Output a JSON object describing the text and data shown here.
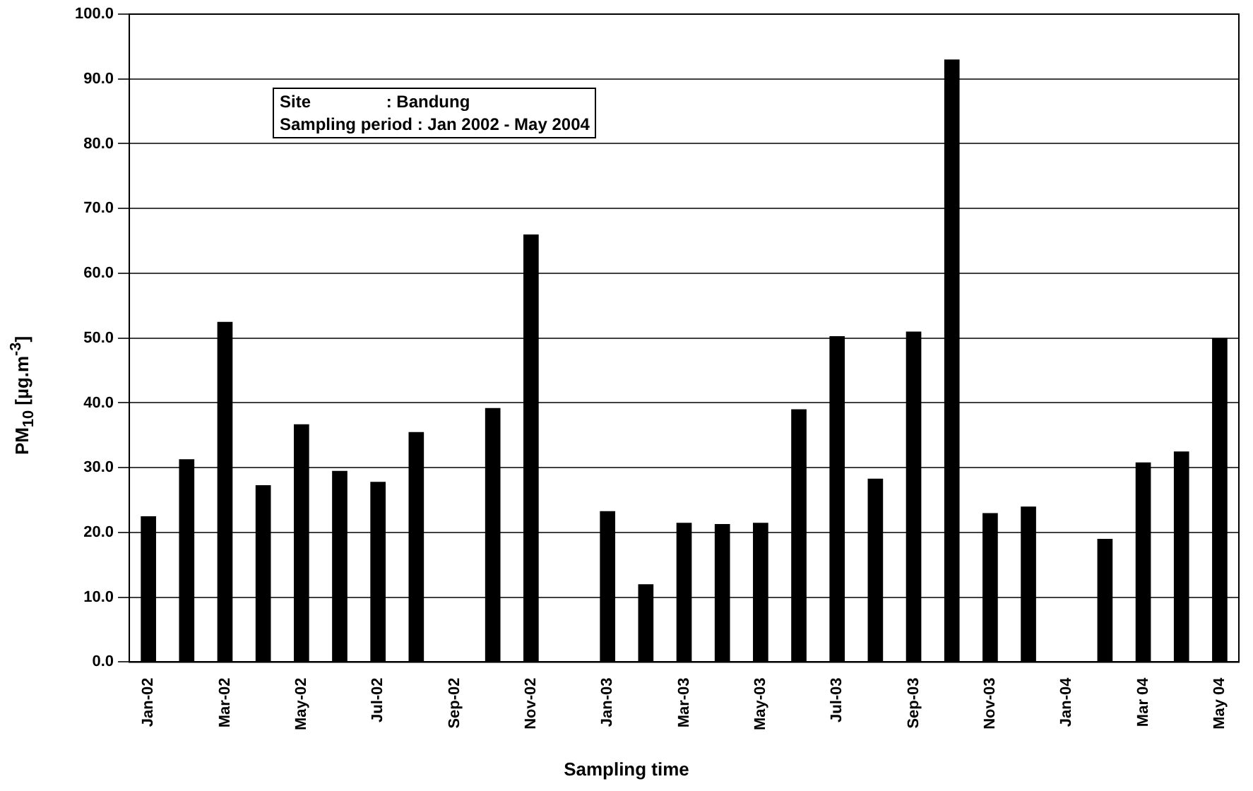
{
  "chart_data": {
    "type": "bar",
    "xlabel": "Sampling time",
    "ylabel": "PM$_{10}$ [µg.m$^{-3}$]",
    "categories": [
      "Jan-02",
      null,
      "Mar-02",
      null,
      "May-02",
      null,
      "Jul-02",
      null,
      "Sep-02",
      null,
      "Nov-02",
      null,
      "Jan-03",
      null,
      "Mar-03",
      null,
      "May-03",
      null,
      "Jul-03",
      null,
      "Sep-03",
      null,
      "Nov-03",
      null,
      "Jan-04",
      null,
      "Mar 04",
      null,
      "May 04"
    ],
    "values": [
      22.5,
      31.3,
      52.5,
      27.3,
      36.7,
      29.5,
      27.8,
      35.5,
      null,
      39.2,
      66,
      null,
      23.3,
      12,
      21.5,
      21.3,
      21.5,
      39,
      50.3,
      28.3,
      51,
      93,
      23,
      24,
      null,
      19,
      30.8,
      32.5,
      50
    ],
    "color": "#000000",
    "ylim": [
      0,
      100
    ],
    "yticks": [
      {
        "value": 0,
        "label": "0.0"
      },
      {
        "value": 10,
        "label": "10.0"
      },
      {
        "value": 20,
        "label": "20.0"
      },
      {
        "value": 30,
        "label": "30.0"
      },
      {
        "value": 40,
        "label": "40.0"
      },
      {
        "value": 50,
        "label": "50.0"
      },
      {
        "value": 60,
        "label": "60.0"
      },
      {
        "value": 70,
        "label": "70.0"
      },
      {
        "value": 80,
        "label": "80.0"
      },
      {
        "value": 90,
        "label": "90.0"
      },
      {
        "value": 100,
        "label": "100.0"
      }
    ],
    "grid": "y",
    "annotations": [
      "Site                : Bandung",
      "Sampling period : Jan 2002 - May 2004"
    ]
  }
}
